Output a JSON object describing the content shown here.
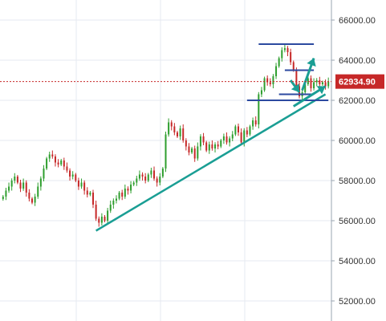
{
  "chart_data": {
    "type": "candlestick",
    "title": "",
    "xlabel": "",
    "ylabel": "",
    "ylim": [
      51000,
      67000
    ],
    "y_ticks": [
      52000,
      54000,
      56000,
      58000,
      60000,
      62000,
      64000,
      66000
    ],
    "y_tick_labels": [
      "52000.00",
      "54000.00",
      "56000.00",
      "58000.00",
      "60000.00",
      "62000.00",
      "64000.00",
      "66000.00"
    ],
    "current_price": 62934.9,
    "current_price_label": "62934.90",
    "grid": true,
    "colors": {
      "up": "#2e9e2e",
      "down": "#c62828",
      "trendline": "#1a9e94",
      "support_resistance": "#2c4aa0",
      "price_line": "#c62828",
      "price_tag_bg": "#c62828",
      "grid": "#e6eaf0",
      "axis_line": "#9aa4b0"
    },
    "key_closes": [
      57200,
      57500,
      57700,
      58000,
      58200,
      57900,
      57600,
      57900,
      57400,
      57100,
      56900,
      57200,
      57700,
      58100,
      58600,
      59100,
      59300,
      59200,
      58900,
      58800,
      59000,
      58700,
      58500,
      58200,
      58300,
      58000,
      57700,
      57900,
      57500,
      57300,
      57400,
      56800,
      56100,
      55900,
      56200,
      56000,
      56500,
      56800,
      57000,
      57100,
      57400,
      57200,
      57600,
      57500,
      57800,
      57900,
      58100,
      58300,
      58200,
      58000,
      58300,
      58500,
      58100,
      57900,
      58200,
      58600,
      60300,
      60900,
      60700,
      60400,
      60200,
      60600,
      60000,
      59700,
      59400,
      59600,
      59100,
      59700,
      60200,
      59900,
      59500,
      59800,
      59600,
      59800,
      59700,
      60000,
      60200,
      59900,
      60100,
      60300,
      60700,
      60400,
      59900,
      60500,
      60300,
      60700,
      61000,
      60800,
      62300,
      62500,
      63100,
      62900,
      62800,
      63200,
      63700,
      64100,
      64500,
      64600,
      64400,
      63900,
      63500,
      62700,
      62200,
      62400,
      62800,
      63100,
      62600,
      62900,
      63000,
      62800,
      62900,
      62700,
      62934.9
    ],
    "annotations": [
      {
        "type": "trendline",
        "points": [
          [
            32,
            55500
          ],
          [
            111,
            62300
          ]
        ]
      },
      {
        "type": "horizontal_line",
        "price": 64800,
        "from": 88,
        "to": 107
      },
      {
        "type": "horizontal_line",
        "price": 63500,
        "from": 97,
        "to": 107
      },
      {
        "type": "horizontal_line",
        "price": 62300,
        "from": 95,
        "to": 107
      },
      {
        "type": "horizontal_line",
        "price": 62000,
        "from": 84,
        "to": 112
      },
      {
        "type": "arrow",
        "from": [
          99,
          63000
        ],
        "to": [
          102,
          62400
        ]
      },
      {
        "type": "arrow",
        "from": [
          103,
          62500
        ],
        "to": [
          107,
          64100
        ]
      },
      {
        "type": "arrow",
        "from": [
          100,
          61700
        ],
        "to": [
          111,
          62700
        ]
      }
    ]
  }
}
